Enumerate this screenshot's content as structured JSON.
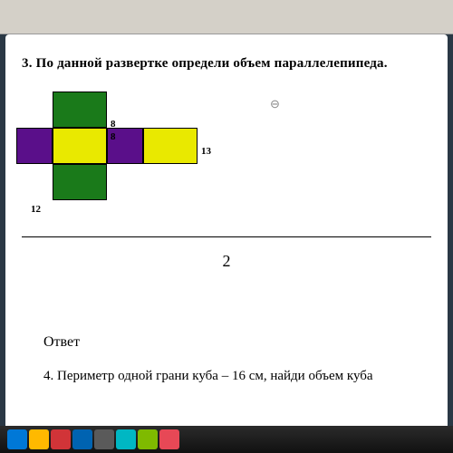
{
  "problem3": {
    "number": "3.",
    "text": "По данной развертке определи объем параллелепипеда.",
    "net": {
      "colors": {
        "green": "#1a7a1a",
        "yellow": "#e9e900",
        "purple": "#5a0f8a",
        "border": "#000000"
      },
      "dimensions": {
        "label_8a": "8",
        "label_8b": "8",
        "label_13": "13",
        "label_12": "12"
      }
    },
    "magnify_icon": "⊖"
  },
  "page_number": "2",
  "answer_label": "Ответ",
  "problem4": {
    "text": "4. Периметр одной грани куба – 16 см, найди объем куба"
  },
  "taskbar_colors": [
    "#0078d7",
    "#ffb900",
    "#d13438",
    "#0063b1",
    "#5a5a5a",
    "#00b7c3",
    "#7fba00",
    "#e74856"
  ]
}
